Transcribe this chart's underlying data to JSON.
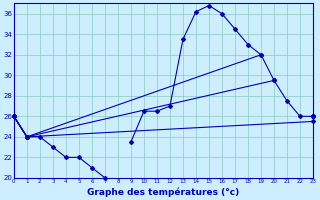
{
  "xlabel": "Graphe des températures (°c)",
  "bg_color": "#cceeff",
  "line_color": "#0000bb",
  "grid_color": "#88ccbb",
  "hours": [
    0,
    1,
    2,
    3,
    4,
    5,
    6,
    7,
    8,
    9,
    10,
    11,
    12,
    13,
    14,
    15,
    16,
    17,
    18,
    19,
    20,
    21,
    22,
    23
  ],
  "line_main": [
    26,
    24,
    24,
    23,
    22,
    22,
    21,
    20,
    null,
    23.5,
    26.5,
    26.5,
    27,
    33.5,
    36.2,
    36.8,
    36,
    34.5,
    33,
    32,
    29.5,
    27.5,
    26,
    26
  ],
  "line_upper": [
    26,
    24,
    null,
    null,
    null,
    null,
    null,
    null,
    null,
    null,
    null,
    null,
    null,
    null,
    null,
    null,
    null,
    null,
    null,
    32,
    null,
    null,
    null,
    26
  ],
  "line_mid": [
    26,
    24,
    null,
    null,
    null,
    null,
    null,
    null,
    null,
    null,
    null,
    null,
    null,
    null,
    null,
    null,
    null,
    null,
    null,
    null,
    29.5,
    null,
    null,
    26
  ],
  "line_lower": [
    26,
    24,
    null,
    null,
    null,
    null,
    null,
    null,
    null,
    null,
    null,
    null,
    null,
    null,
    null,
    null,
    null,
    null,
    null,
    null,
    null,
    null,
    null,
    25.5
  ],
  "ylim": [
    20,
    37
  ],
  "yticks": [
    20,
    22,
    24,
    26,
    28,
    30,
    32,
    34,
    36
  ],
  "xlim": [
    0,
    23
  ],
  "xtick_labels": [
    "0",
    "1",
    "2",
    "3",
    "4",
    "5",
    "6",
    "7",
    "8",
    "9",
    "10",
    "11",
    "12",
    "13",
    "14",
    "15",
    "16",
    "17",
    "18",
    "19",
    "20",
    "21",
    "22",
    "23"
  ]
}
